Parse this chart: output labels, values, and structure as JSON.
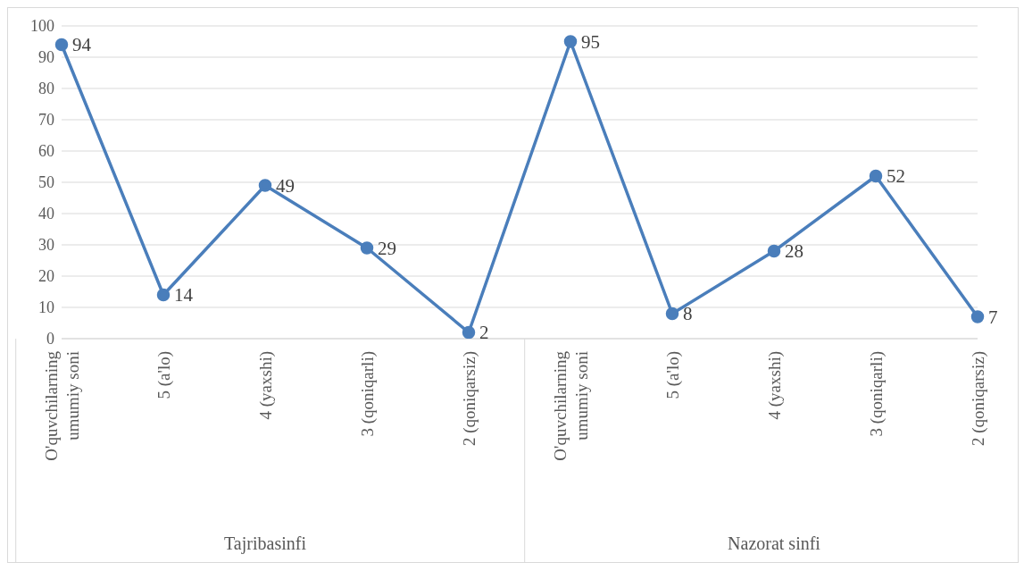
{
  "chart_data": {
    "type": "line",
    "categories": [
      "O'quvchilarning umumiy soni",
      "5 (a'lo)",
      "4 (yaxshi)",
      "3 (qoniqarli)",
      "2 (qoniqarsiz)",
      "O'quvchilarning umumiy soni",
      "5 (a'lo)",
      "4 (yaxshi)",
      "3 (qoniqarli)",
      "2 (qoniqarsiz)"
    ],
    "series": [
      {
        "color": "#4a7ebb",
        "values": [
          94,
          14,
          49,
          29,
          2,
          95,
          8,
          28,
          52,
          7
        ]
      }
    ],
    "ylim": [
      0,
      100
    ],
    "yticks": [
      0,
      10,
      20,
      30,
      40,
      50,
      60,
      70,
      80,
      90,
      100
    ],
    "grid": "y",
    "marker": "circle",
    "line_style": "solid",
    "data_labels": true,
    "legend": false,
    "annotations": [
      "Tajribasinfi",
      "Nazorat sinfi"
    ]
  }
}
